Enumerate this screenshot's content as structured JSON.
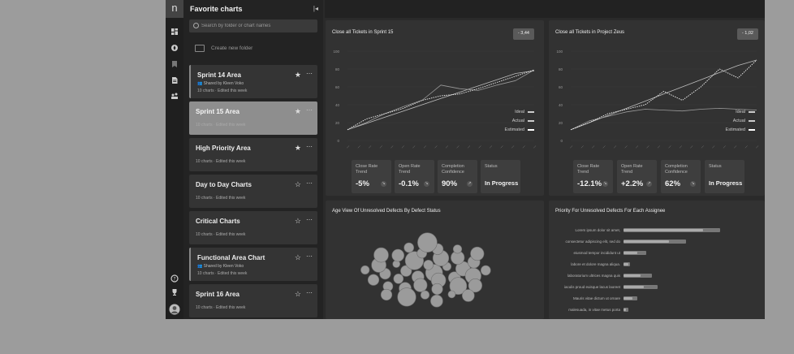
{
  "rail": {
    "logo": "n",
    "items": [
      "dashboard-icon",
      "compass-icon",
      "bookmark-icon",
      "document-icon",
      "team-icon",
      "help-icon",
      "trophy-icon",
      "avatar"
    ]
  },
  "panel": {
    "title": "Favorite charts",
    "search_placeholder": "Search by folder or chart names",
    "new_folder": "Create new folder",
    "folders": [
      {
        "name": "Sprint 14 Area",
        "shared": "Shared by Kleen Voko",
        "meta": "10 charts · Edited this week",
        "starred": true,
        "selected": false
      },
      {
        "name": "Sprint 15 Area",
        "shared": "",
        "meta": "10 charts · Edited this week",
        "starred": true,
        "selected": true
      },
      {
        "name": "High Priority Area",
        "shared": "",
        "meta": "10 charts · Edited this week",
        "starred": true,
        "selected": false
      },
      {
        "name": "Day to Day Charts",
        "shared": "",
        "meta": "10 charts · Edited this week",
        "starred": false,
        "selected": false
      },
      {
        "name": "Critical Charts",
        "shared": "",
        "meta": "10 charts · Edited this week",
        "starred": false,
        "selected": false
      },
      {
        "name": "Functional Area Chart",
        "shared": "Shared by Kleen Voko",
        "meta": "10 charts · Edited this week",
        "starred": false,
        "selected": false
      },
      {
        "name": "Sprint 16 Area",
        "shared": "",
        "meta": "10 charts · Edited this week",
        "starred": false,
        "selected": false
      }
    ]
  },
  "widgets": {
    "sprint": {
      "title": "Close all Tickets in Sprint 15",
      "badge": "- 3,44",
      "legend": [
        "Ideal",
        "Actual",
        "Estimated"
      ],
      "stats": [
        {
          "label": "Close Rate Trend",
          "value": "-5%",
          "arrow": "↘"
        },
        {
          "label": "Open Rate Trend",
          "value": "-0.1%",
          "arrow": "↘"
        },
        {
          "label": "Completion Confidence",
          "value": "90%",
          "arrow": "↗"
        },
        {
          "label": "Status",
          "value": "In Progress",
          "arrow": ""
        }
      ]
    },
    "zeus": {
      "title": "Close all Tickets in Project Zeus",
      "badge": "- 1,02",
      "legend": [
        "Ideal",
        "Actual",
        "Estimated"
      ],
      "stats": [
        {
          "label": "Close Rate Trend",
          "value": "-12.1%",
          "arrow": "↘"
        },
        {
          "label": "Open Rate Trend",
          "value": "+2.2%",
          "arrow": "↗"
        },
        {
          "label": "Completion Confidence",
          "value": "62%",
          "arrow": "↘"
        },
        {
          "label": "Status",
          "value": "In Progress",
          "arrow": ""
        }
      ]
    },
    "age": {
      "title": "Age View Of Unresolved Defects By Defect Status"
    },
    "priority": {
      "title": "Priority For Unresolved Defects For Each Assignee",
      "rows": [
        {
          "label": "Lorem ipsum dolor sit amet,",
          "value": 0.85,
          "value2": 0.7
        },
        {
          "label": "consectetur adipiscing elit, sed do",
          "value": 0.55,
          "value2": 0.4
        },
        {
          "label": "eiusmod tempor incididunt ut",
          "value": 0.2,
          "value2": 0.12
        },
        {
          "label": "labore et dolore magna aliqua.",
          "value": 0.06,
          "value2": 0.04
        },
        {
          "label": "laboratorium ultrices magna quis",
          "value": 0.25,
          "value2": 0.15
        },
        {
          "label": "iaculis proud euisque lacus laoreet",
          "value": 0.3,
          "value2": 0.18
        },
        {
          "label": "Mauris vitae dictum ut ornare",
          "value": 0.12,
          "value2": 0.08
        },
        {
          "label": "malesuada, in vitae metus porta",
          "value": 0.04,
          "value2": 0.02
        }
      ]
    }
  },
  "chart_data": [
    {
      "type": "line",
      "title": "Close all Tickets in Sprint 15",
      "ylim": [
        0,
        100
      ],
      "yticks": [
        "0",
        "20",
        "40",
        "60",
        "80",
        "100"
      ],
      "series": [
        {
          "name": "Ideal",
          "values": [
            12,
            19,
            26,
            33,
            40,
            47,
            54,
            61,
            68,
            75,
            78
          ]
        },
        {
          "name": "Actual",
          "values": [
            12,
            20,
            30,
            38,
            45,
            62,
            58,
            56,
            62,
            67,
            79
          ]
        },
        {
          "name": "Estimated",
          "values": [
            12,
            24,
            30,
            36,
            45,
            50,
            52,
            58,
            65,
            72,
            79
          ]
        }
      ]
    },
    {
      "type": "line",
      "title": "Close all Tickets in Project Zeus",
      "ylim": [
        0,
        100
      ],
      "yticks": [
        "0",
        "20",
        "40",
        "60",
        "80",
        "100"
      ],
      "series": [
        {
          "name": "Ideal",
          "values": [
            12,
            20,
            28,
            36,
            44,
            52,
            60,
            68,
            76,
            84,
            90
          ]
        },
        {
          "name": "Actual",
          "values": [
            12,
            22,
            27,
            32,
            35,
            34,
            33,
            35,
            36,
            35,
            34
          ]
        },
        {
          "name": "Estimated",
          "values": [
            12,
            20,
            30,
            35,
            40,
            55,
            45,
            60,
            80,
            70,
            90
          ]
        }
      ]
    },
    {
      "type": "scatter",
      "title": "Age View Of Unresolved Defects By Defect Status",
      "series": [
        {
          "values": [
            14,
            10,
            8,
            12,
            9,
            7,
            11,
            15,
            10,
            8,
            13,
            9,
            6,
            12,
            10,
            8,
            14,
            9,
            11,
            7,
            10,
            13,
            8,
            9,
            6,
            12,
            10,
            15,
            8,
            11,
            9,
            7,
            10,
            12,
            8,
            9,
            16,
            10,
            7,
            11
          ]
        }
      ]
    },
    {
      "type": "bar",
      "title": "Priority For Unresolved Defects For Each Assignee",
      "categories": [
        "Lorem ipsum dolor sit amet,",
        "consectetur adipiscing elit, sed do",
        "eiusmod tempor incididunt ut",
        "labore et dolore magna aliqua.",
        "laboratorium ultrices magna quis",
        "iaculis proud euisque lacus laoreet",
        "Mauris vitae dictum ut ornare",
        "malesuada, in vitae metus porta"
      ],
      "series": [
        {
          "values": [
            0.85,
            0.55,
            0.2,
            0.06,
            0.25,
            0.3,
            0.12,
            0.04
          ]
        },
        {
          "values": [
            0.7,
            0.4,
            0.12,
            0.04,
            0.15,
            0.18,
            0.08,
            0.02
          ]
        }
      ]
    }
  ]
}
